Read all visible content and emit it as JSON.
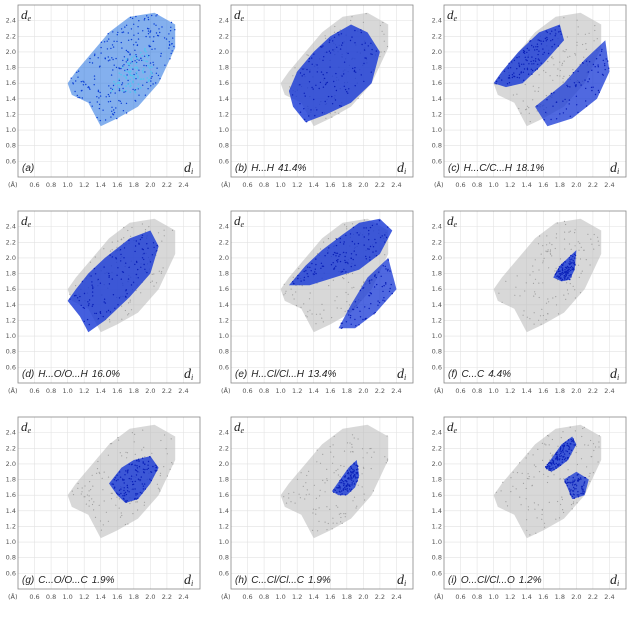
{
  "axes": {
    "y_var": "d",
    "y_sub": "e",
    "x_var": "d",
    "x_sub": "i",
    "unit": "(Å)",
    "x_ticks": [
      "0.6",
      "0.8",
      "1.0",
      "1.2",
      "1.4",
      "1.6",
      "1.8",
      "2.0",
      "2.2",
      "2.4"
    ],
    "y_ticks": [
      "2.4",
      "2.2",
      "2.0",
      "1.8",
      "1.6",
      "1.4",
      "1.2",
      "1.0",
      "0.8",
      "0.6"
    ],
    "xlim": [
      0.4,
      2.6
    ],
    "ylim": [
      0.4,
      2.6
    ]
  },
  "colors": {
    "full": "#1f6fe0",
    "contribution": "#1537d6",
    "background": "#b8b8b8",
    "frame": "#888888",
    "grid": "#e2e2e2"
  },
  "chart_data": [
    {
      "type": "scatter",
      "caption": "(a)",
      "label": "",
      "percent": "",
      "style": "full",
      "region": [
        [
          1.0,
          1.6
        ],
        [
          1.1,
          1.75
        ],
        [
          1.3,
          2.0
        ],
        [
          1.5,
          2.25
        ],
        [
          1.75,
          2.45
        ],
        [
          2.05,
          2.5
        ],
        [
          2.3,
          2.35
        ],
        [
          2.3,
          2.05
        ],
        [
          2.1,
          1.6
        ],
        [
          1.85,
          1.3
        ],
        [
          1.6,
          1.15
        ],
        [
          1.4,
          1.05
        ],
        [
          1.25,
          1.35
        ],
        [
          1.05,
          1.45
        ]
      ],
      "highlight": []
    },
    {
      "type": "scatter",
      "caption": "(b)",
      "label": "H...H",
      "percent": "41.4%",
      "style": "contribution",
      "region": [
        [
          1.1,
          1.5
        ],
        [
          1.2,
          1.75
        ],
        [
          1.4,
          2.0
        ],
        [
          1.6,
          2.2
        ],
        [
          1.85,
          2.35
        ],
        [
          2.05,
          2.25
        ],
        [
          2.2,
          2.0
        ],
        [
          2.1,
          1.6
        ],
        [
          1.85,
          1.35
        ],
        [
          1.55,
          1.2
        ],
        [
          1.3,
          1.1
        ],
        [
          1.15,
          1.3
        ]
      ],
      "highlight": []
    },
    {
      "type": "scatter",
      "caption": "(c)",
      "label": "H...C/C...H",
      "percent": "18.1%",
      "style": "contribution",
      "region": [
        [
          1.0,
          1.6
        ],
        [
          1.1,
          1.75
        ],
        [
          1.3,
          2.0
        ],
        [
          1.55,
          2.25
        ],
        [
          1.8,
          2.35
        ],
        [
          1.85,
          2.15
        ],
        [
          1.6,
          1.85
        ],
        [
          1.35,
          1.6
        ],
        [
          1.15,
          1.55
        ]
      ],
      "highlight": [
        [
          1.5,
          1.3
        ],
        [
          1.85,
          1.6
        ],
        [
          2.1,
          1.9
        ],
        [
          2.35,
          2.15
        ],
        [
          2.4,
          1.75
        ],
        [
          2.25,
          1.4
        ],
        [
          1.95,
          1.15
        ],
        [
          1.65,
          1.05
        ]
      ]
    },
    {
      "type": "scatter",
      "caption": "(d)",
      "label": "H...O/O...H",
      "percent": "16.0%",
      "style": "contribution",
      "region": [
        [
          1.0,
          1.45
        ],
        [
          1.1,
          1.6
        ],
        [
          1.25,
          1.8
        ],
        [
          1.45,
          2.0
        ],
        [
          1.75,
          2.25
        ],
        [
          2.0,
          2.35
        ],
        [
          2.1,
          2.15
        ],
        [
          2.0,
          1.8
        ],
        [
          1.75,
          1.5
        ],
        [
          1.45,
          1.2
        ],
        [
          1.25,
          1.05
        ],
        [
          1.15,
          1.25
        ]
      ],
      "highlight": []
    },
    {
      "type": "scatter",
      "caption": "(e)",
      "label": "H...Cl/Cl...H",
      "percent": "13.4%",
      "style": "contribution",
      "region": [
        [
          1.1,
          1.65
        ],
        [
          1.3,
          1.9
        ],
        [
          1.5,
          2.1
        ],
        [
          1.75,
          2.3
        ],
        [
          1.95,
          2.45
        ],
        [
          2.2,
          2.5
        ],
        [
          2.35,
          2.35
        ],
        [
          2.2,
          2.05
        ],
        [
          1.95,
          1.85
        ],
        [
          1.65,
          1.75
        ],
        [
          1.35,
          1.65
        ]
      ],
      "highlight": [
        [
          1.85,
          1.4
        ],
        [
          2.05,
          1.75
        ],
        [
          2.3,
          2.0
        ],
        [
          2.4,
          1.6
        ],
        [
          2.15,
          1.3
        ],
        [
          1.9,
          1.1
        ],
        [
          1.7,
          1.1
        ]
      ]
    },
    {
      "type": "scatter",
      "caption": "(f)",
      "label": "C...C",
      "percent": "4.4%",
      "style": "contribution",
      "region": [
        [
          1.72,
          1.75
        ],
        [
          1.8,
          1.9
        ],
        [
          1.9,
          2.0
        ],
        [
          2.0,
          2.1
        ],
        [
          1.98,
          1.85
        ],
        [
          1.92,
          1.72
        ],
        [
          1.82,
          1.7
        ]
      ],
      "highlight": []
    },
    {
      "type": "scatter",
      "caption": "(g)",
      "label": "C...O/O...C",
      "percent": "1.9%",
      "style": "contribution",
      "region": [
        [
          1.5,
          1.75
        ],
        [
          1.65,
          1.95
        ],
        [
          1.8,
          2.05
        ],
        [
          2.0,
          2.1
        ],
        [
          2.1,
          1.95
        ],
        [
          2.0,
          1.75
        ],
        [
          1.85,
          1.55
        ],
        [
          1.7,
          1.5
        ],
        [
          1.6,
          1.6
        ]
      ],
      "highlight": []
    },
    {
      "type": "scatter",
      "caption": "(h)",
      "label": "C...Cl/Cl...C",
      "percent": "1.9%",
      "style": "contribution",
      "region": [
        [
          1.62,
          1.65
        ],
        [
          1.72,
          1.8
        ],
        [
          1.82,
          1.95
        ],
        [
          1.92,
          2.05
        ],
        [
          1.95,
          1.85
        ],
        [
          1.9,
          1.7
        ],
        [
          1.8,
          1.6
        ],
        [
          1.7,
          1.6
        ]
      ],
      "highlight": []
    },
    {
      "type": "scatter",
      "caption": "(i)",
      "label": "O...Cl/Cl...O",
      "percent": "1.2%",
      "style": "contribution",
      "region": [
        [
          1.62,
          1.95
        ],
        [
          1.72,
          2.1
        ],
        [
          1.82,
          2.25
        ],
        [
          1.95,
          2.35
        ],
        [
          2.0,
          2.25
        ],
        [
          1.9,
          2.05
        ],
        [
          1.78,
          1.95
        ],
        [
          1.7,
          1.9
        ]
      ],
      "highlight": [
        [
          1.85,
          1.8
        ],
        [
          2.0,
          1.9
        ],
        [
          2.15,
          1.8
        ],
        [
          2.1,
          1.6
        ],
        [
          1.95,
          1.55
        ]
      ]
    }
  ]
}
